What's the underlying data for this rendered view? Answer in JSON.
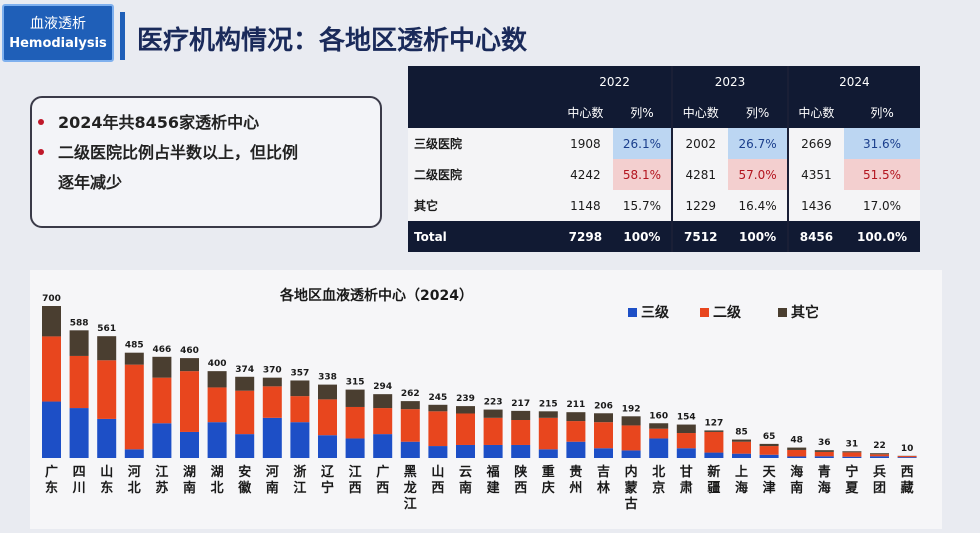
{
  "header": {
    "logo_cn": "血液透析",
    "logo_en": "Hemodialysis",
    "title": "医疗机构情况：各地区透析中心数"
  },
  "bullets": [
    "2024年共8456家透析中心",
    "二级医院比例占半数以上，但比例",
    "逐年减少"
  ],
  "table": {
    "years": [
      "2022",
      "2023",
      "2024"
    ],
    "sub_headers": [
      "中心数",
      "列%"
    ],
    "rows": [
      {
        "label": "三级医院",
        "cells": [
          "1908",
          "26.1%",
          "2002",
          "26.7%",
          "2669",
          "31.6%"
        ]
      },
      {
        "label": "二级医院",
        "cells": [
          "4242",
          "58.1%",
          "4281",
          "57.0%",
          "4351",
          "51.5%"
        ]
      },
      {
        "label": "其它",
        "cells": [
          "1148",
          "15.7%",
          "1229",
          "16.4%",
          "1436",
          "17.0%"
        ]
      },
      {
        "label": "Total",
        "cells": [
          "7298",
          "100%",
          "7512",
          "100%",
          "8456",
          "100.0%"
        ]
      }
    ]
  },
  "colors": {
    "tertiary": "#1d4fc6",
    "secondary": "#e8461e",
    "other": "#4a3e30",
    "header_dark": "#111a33",
    "highlight_blue": "#bcd6f2",
    "highlight_pink": "#f3cfcf"
  },
  "chart_data": {
    "type": "bar",
    "stacked": true,
    "title": "各地区血液透析中心（2024）",
    "legend_position": "top-right",
    "categories": [
      "广东",
      "四川",
      "山东",
      "河北",
      "江苏",
      "湖南",
      "湖北",
      "安徽",
      "河南",
      "浙江",
      "辽宁",
      "江西",
      "广西",
      "黑龙江",
      "山西",
      "云南",
      "福建",
      "陕西",
      "重庆",
      "贵州",
      "吉林",
      "内蒙古",
      "北京",
      "甘肃",
      "新疆",
      "上海",
      "天津",
      "海南",
      "青海",
      "宁夏",
      "兵团",
      "西藏"
    ],
    "totals": [
      700,
      588,
      561,
      485,
      466,
      460,
      400,
      374,
      370,
      357,
      338,
      315,
      294,
      262,
      245,
      239,
      223,
      217,
      215,
      211,
      206,
      192,
      160,
      154,
      127,
      85,
      65,
      48,
      36,
      31,
      22,
      10
    ],
    "series": [
      {
        "name": "三级",
        "values": [
          260,
          230,
          180,
          40,
          160,
          120,
          165,
          110,
          185,
          165,
          105,
          90,
          110,
          75,
          55,
          60,
          60,
          60,
          40,
          75,
          45,
          35,
          90,
          45,
          25,
          20,
          15,
          7,
          8,
          6,
          8,
          4
        ]
      },
      {
        "name": "二级",
        "values": [
          300,
          240,
          270,
          390,
          210,
          280,
          160,
          200,
          145,
          120,
          165,
          145,
          120,
          150,
          160,
          145,
          125,
          115,
          145,
          95,
          120,
          115,
          45,
          70,
          95,
          55,
          40,
          30,
          20,
          20,
          9,
          5
        ]
      },
      {
        "name": "其它",
        "values": [
          140,
          118,
          111,
          55,
          96,
          60,
          75,
          64,
          40,
          72,
          68,
          80,
          64,
          37,
          30,
          34,
          38,
          42,
          30,
          41,
          41,
          42,
          25,
          39,
          7,
          10,
          10,
          11,
          8,
          5,
          5,
          1
        ]
      }
    ],
    "ylim": [
      0,
      700
    ]
  }
}
